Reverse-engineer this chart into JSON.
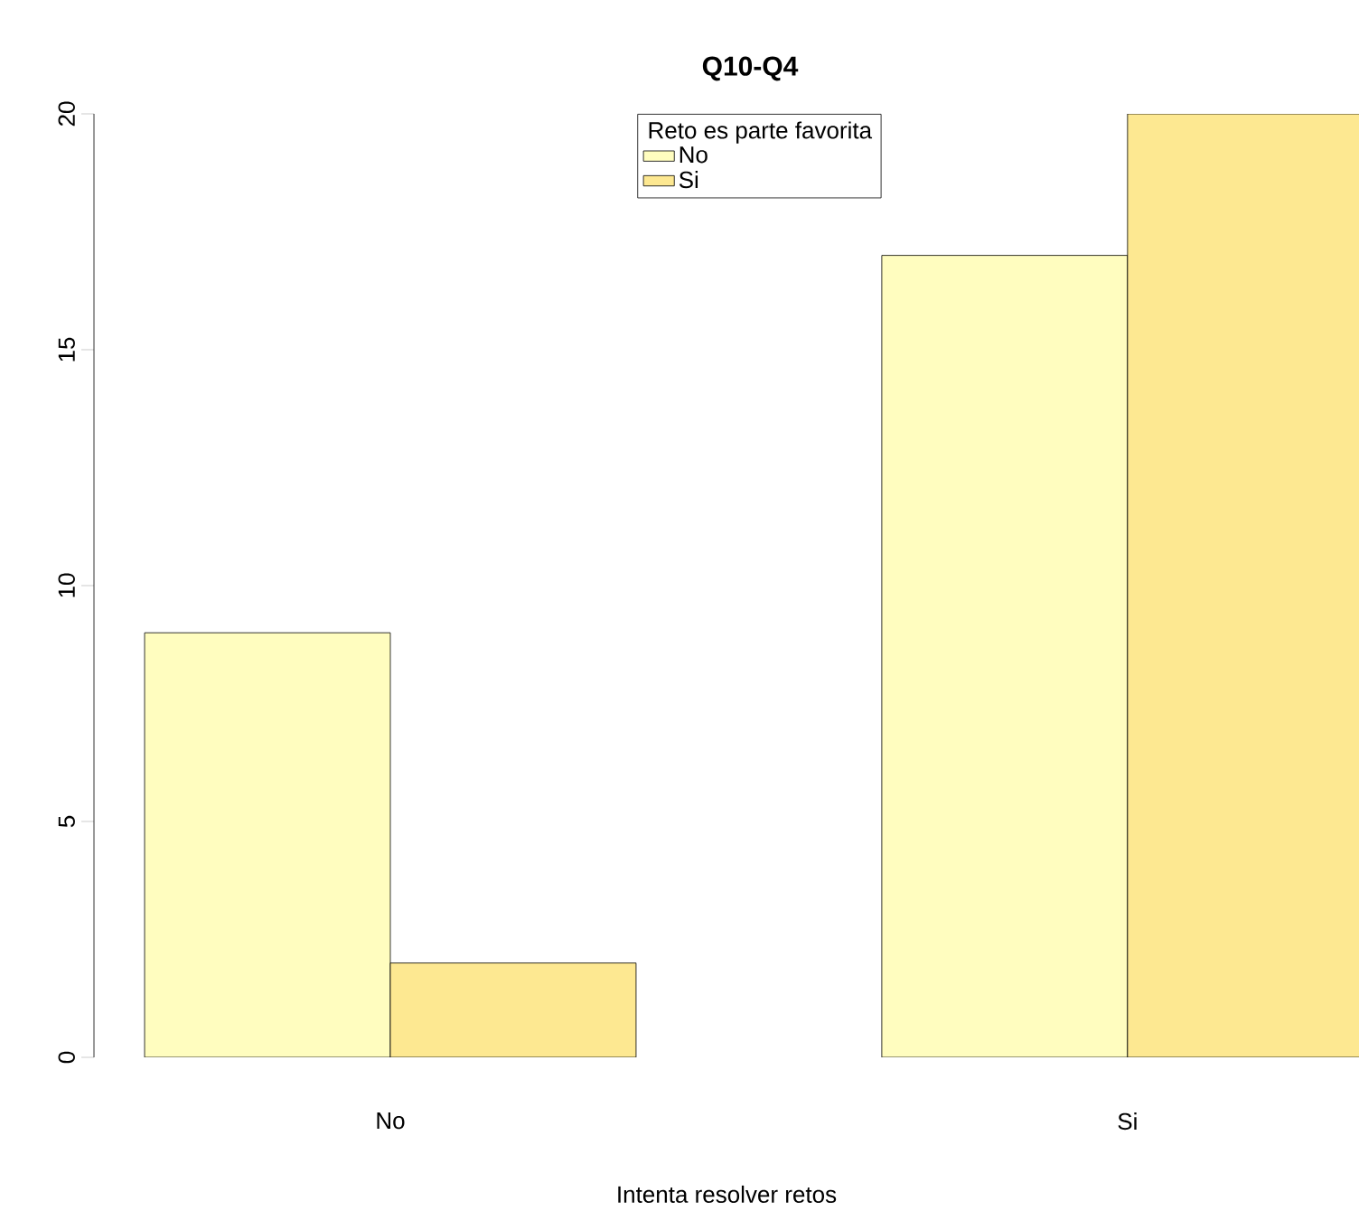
{
  "chart_data": {
    "type": "bar",
    "title": "Q10-Q4",
    "xlabel": "Intenta resolver retos",
    "legend_title": "Reto es parte favorita",
    "categories": [
      "No",
      "Si"
    ],
    "series": [
      {
        "name": "No",
        "color": "#FFFDBF",
        "values": [
          9,
          17
        ]
      },
      {
        "name": "Si",
        "color": "#FDE891",
        "values": [
          2,
          20
        ]
      }
    ],
    "ylim": [
      0,
      20
    ],
    "yticks": [
      0,
      5,
      10,
      15,
      20
    ],
    "grid": false,
    "legend": "top"
  }
}
